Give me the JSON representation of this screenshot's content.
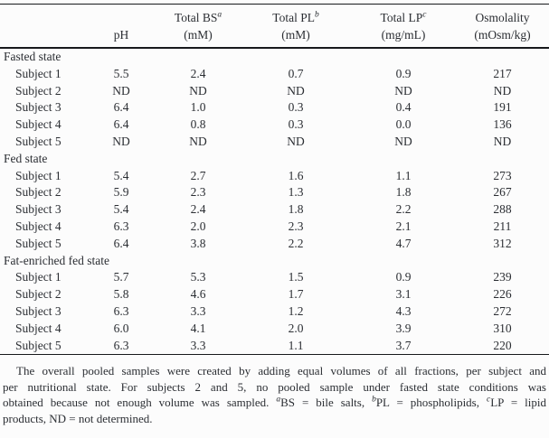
{
  "page": {
    "background": "#fcfcfc",
    "text_color": "#2b2e33",
    "rule_color": "#17191c"
  },
  "table": {
    "columns": [
      {
        "id": "label",
        "header_line1": "",
        "header_line2": ""
      },
      {
        "id": "ph",
        "header_line1": "",
        "header_line2": "pH"
      },
      {
        "id": "total_bs",
        "header_line1": "Total BS",
        "header_sup": "a",
        "header_line2": "(mM)"
      },
      {
        "id": "total_pl",
        "header_line1": "Total PL",
        "header_sup": "b",
        "header_line2": "(mM)"
      },
      {
        "id": "total_lp",
        "header_line1": "Total LP",
        "header_sup": "c",
        "header_line2": "(mg/mL)"
      },
      {
        "id": "osmolality",
        "header_line1": "Osmolality",
        "header_line2": "(mOsm/kg)"
      }
    ],
    "groups": [
      {
        "label": "Fasted state",
        "rows": [
          {
            "label": "Subject 1",
            "values": [
              "5.5",
              "2.4",
              "0.7",
              "0.9",
              "217"
            ]
          },
          {
            "label": "Subject 2",
            "values": [
              "ND",
              "ND",
              "ND",
              "ND",
              "ND"
            ]
          },
          {
            "label": "Subject 3",
            "values": [
              "6.4",
              "1.0",
              "0.3",
              "0.4",
              "191"
            ]
          },
          {
            "label": "Subject 4",
            "values": [
              "6.4",
              "0.8",
              "0.3",
              "0.0",
              "136"
            ]
          },
          {
            "label": "Subject 5",
            "values": [
              "ND",
              "ND",
              "ND",
              "ND",
              "ND"
            ]
          }
        ]
      },
      {
        "label": "Fed state",
        "rows": [
          {
            "label": "Subject 1",
            "values": [
              "5.4",
              "2.7",
              "1.6",
              "1.1",
              "273"
            ]
          },
          {
            "label": "Subject 2",
            "values": [
              "5.9",
              "2.3",
              "1.3",
              "1.8",
              "267"
            ]
          },
          {
            "label": "Subject 3",
            "values": [
              "5.4",
              "2.4",
              "1.8",
              "2.2",
              "288"
            ]
          },
          {
            "label": "Subject 4",
            "values": [
              "6.3",
              "2.0",
              "2.3",
              "2.1",
              "211"
            ]
          },
          {
            "label": "Subject 5",
            "values": [
              "6.4",
              "3.8",
              "2.2",
              "4.7",
              "312"
            ]
          }
        ]
      },
      {
        "label": "Fat-enriched fed state",
        "rows": [
          {
            "label": "Subject 1",
            "values": [
              "5.7",
              "5.3",
              "1.5",
              "0.9",
              "239"
            ]
          },
          {
            "label": "Subject 2",
            "values": [
              "5.8",
              "4.6",
              "1.7",
              "3.1",
              "226"
            ]
          },
          {
            "label": "Subject 3",
            "values": [
              "6.3",
              "3.3",
              "1.2",
              "4.3",
              "272"
            ]
          },
          {
            "label": "Subject 4",
            "values": [
              "6.0",
              "4.1",
              "2.0",
              "3.9",
              "310"
            ]
          },
          {
            "label": "Subject 5",
            "values": [
              "6.3",
              "3.3",
              "1.1",
              "3.7",
              "220"
            ]
          }
        ]
      }
    ]
  },
  "footnote": {
    "lines": [
      {
        "justify": true,
        "indent": true,
        "parts": [
          {
            "text": "The overall pooled samples were created by adding equal volumes of all fractions, per subject and"
          }
        ]
      },
      {
        "justify": true,
        "indent": false,
        "parts": [
          {
            "text": "per nutritional state. For subjects 2 and 5, no pooled sample under fasted state conditions was"
          }
        ]
      },
      {
        "justify": true,
        "indent": false,
        "parts": [
          {
            "text": "obtained because not enough volume was sampled. "
          },
          {
            "sup": "a"
          },
          {
            "text": "BS = bile salts, "
          },
          {
            "sup": "b"
          },
          {
            "text": "PL = phospholipids, "
          },
          {
            "sup": "c"
          },
          {
            "text": "LP = lipid"
          }
        ]
      },
      {
        "justify": false,
        "indent": false,
        "parts": [
          {
            "text": "products, ND = not determined."
          }
        ]
      }
    ]
  }
}
